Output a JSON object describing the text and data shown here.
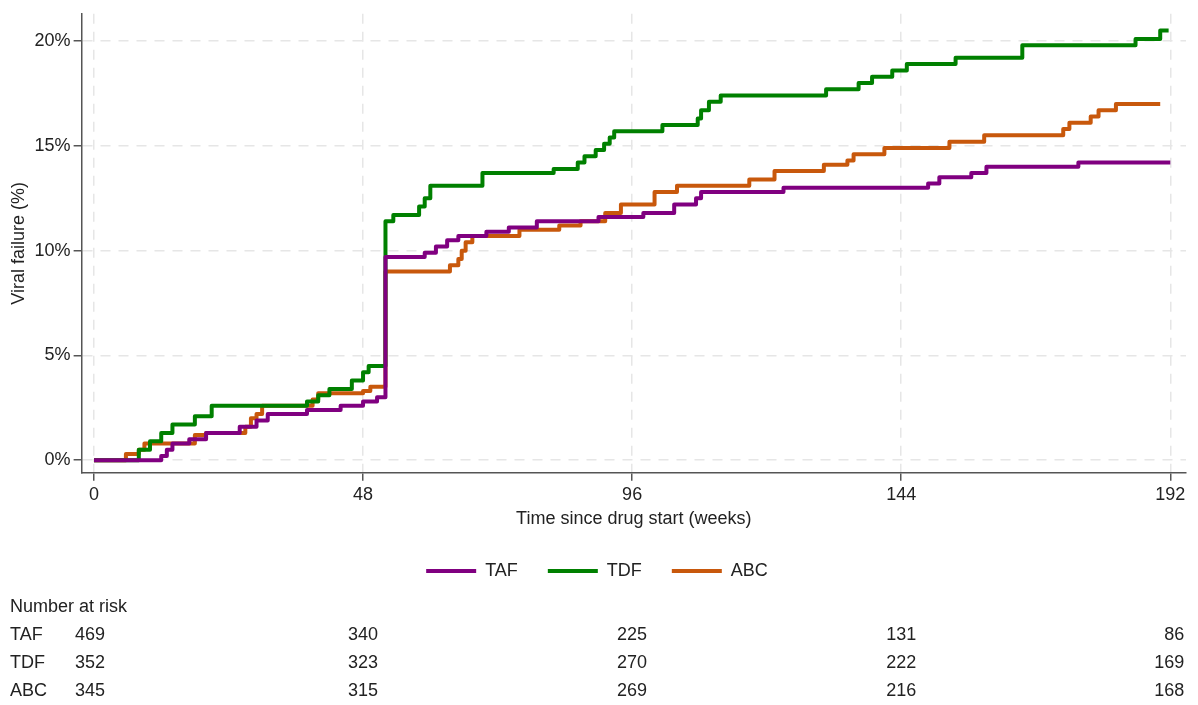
{
  "chart_data": {
    "type": "step",
    "xlabel": "Time since drug start (weeks)",
    "ylabel": "Viral failure (%)",
    "xlim": [
      -2.2,
      194.8
    ],
    "xticks": [
      0,
      48,
      96,
      144,
      192
    ],
    "ylim": [
      -0.6,
      21.3
    ],
    "yticks": [
      {
        "value": 0,
        "label": "0%"
      },
      {
        "value": 5,
        "label": "5%"
      },
      {
        "value": 10,
        "label": "10%"
      },
      {
        "value": 15,
        "label": "15%"
      },
      {
        "value": 20,
        "label": "20%"
      }
    ],
    "grid": true,
    "legend": "bottom",
    "marker": "none",
    "line_style": "solid",
    "series": [
      {
        "name": "TAF",
        "color": "#800080",
        "x": [
          0,
          12,
          13,
          14,
          17,
          20,
          26,
          29,
          31,
          38,
          44,
          48,
          50.5,
          52,
          59,
          61,
          63,
          65,
          70,
          74,
          79,
          90,
          98,
          103.5,
          107.4,
          108.3,
          123,
          148.8,
          150.8,
          156.5,
          159.2,
          175.6,
          192
        ],
        "values": [
          0,
          0.2,
          0.5,
          0.8,
          1.0,
          1.3,
          1.6,
          1.9,
          2.2,
          2.4,
          2.6,
          2.8,
          3.0,
          9.7,
          9.9,
          10.2,
          10.5,
          10.7,
          10.9,
          11.1,
          11.4,
          11.6,
          11.8,
          12.2,
          12.5,
          12.8,
          13.0,
          13.2,
          13.5,
          13.7,
          14.0,
          14.2,
          14.2
        ]
      },
      {
        "name": "TDF",
        "color": "#008000",
        "x": [
          0,
          8,
          10,
          12,
          14,
          18,
          21,
          38,
          40,
          42,
          46,
          48,
          49,
          51,
          52,
          53.4,
          58,
          59,
          60,
          69.3,
          82,
          86.3,
          87.5,
          89.5,
          91,
          92,
          92.8,
          101.4,
          107.7,
          108.3,
          109.7,
          111.8,
          130.6,
          136.4,
          138.8,
          142.4,
          145,
          153.7,
          165.6,
          185.8,
          190.2,
          191.7
        ],
        "values": [
          0,
          0.5,
          0.9,
          1.3,
          1.7,
          2.1,
          2.6,
          2.8,
          3.1,
          3.4,
          3.8,
          4.2,
          4.5,
          4.5,
          11.4,
          11.7,
          12.1,
          12.5,
          13.1,
          13.7,
          13.9,
          14.2,
          14.5,
          14.8,
          15.1,
          15.4,
          15.7,
          16.0,
          16.3,
          16.7,
          17.1,
          17.4,
          17.7,
          18.0,
          18.3,
          18.6,
          18.9,
          19.2,
          19.8,
          20.1,
          20.5,
          20.5
        ]
      },
      {
        "name": "ABC",
        "color": "#c8580c",
        "x": [
          0,
          5.7,
          8,
          9,
          18,
          20,
          27,
          28,
          29,
          30,
          39,
          40,
          48,
          49.3,
          52,
          63.5,
          65,
          65.6,
          66.3,
          67.5,
          75.9,
          83,
          86.8,
          91.2,
          94,
          100,
          104,
          116.9,
          121.4,
          130.2,
          134.4,
          135.5,
          141,
          152.6,
          158.8,
          172.9,
          174,
          177.8,
          179.2,
          182.3,
          190.2
        ],
        "values": [
          0,
          0.3,
          0.5,
          0.8,
          1.2,
          1.3,
          1.6,
          2.0,
          2.2,
          2.6,
          2.9,
          3.2,
          3.3,
          3.5,
          9.0,
          9.3,
          9.6,
          10.0,
          10.4,
          10.7,
          11.0,
          11.2,
          11.4,
          11.8,
          12.2,
          12.8,
          13.1,
          13.4,
          13.8,
          14.1,
          14.3,
          14.6,
          14.9,
          15.2,
          15.5,
          15.8,
          16.1,
          16.4,
          16.7,
          17.0,
          17.0
        ]
      }
    ],
    "annotations": [
      "Number at risk",
      "TAF",
      "469",
      "340",
      "225",
      "131",
      "86",
      "TDF",
      "352",
      "323",
      "270",
      "222",
      "169",
      "ABC",
      "345",
      "315",
      "269",
      "216",
      "168"
    ]
  }
}
